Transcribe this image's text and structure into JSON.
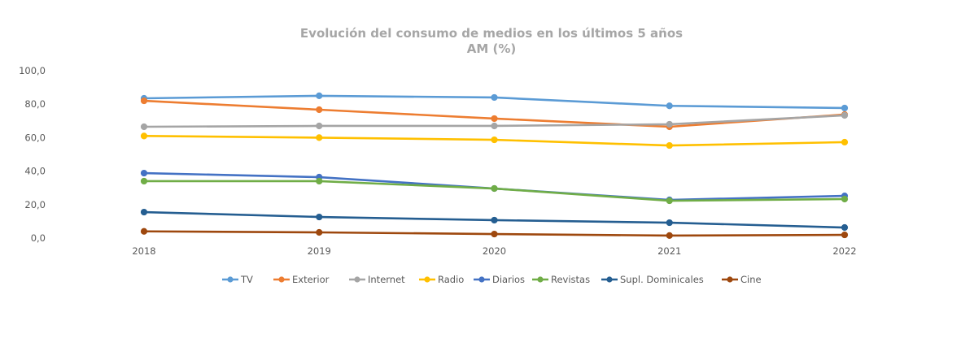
{
  "chart_data": {
    "type": "line",
    "title": "Evolución del consumo de medios en los últimos 5 años",
    "subtitle": "AM (%)",
    "xlabel": "",
    "ylabel": "",
    "x": [
      "2018",
      "2019",
      "2020",
      "2021",
      "2022"
    ],
    "ylim": [
      0,
      100
    ],
    "yticks": [
      "0,0",
      "20,0",
      "40,0",
      "60,0",
      "80,0",
      "100,0"
    ],
    "ytick_values": [
      0,
      20,
      40,
      60,
      80,
      100
    ],
    "grid": false,
    "legend_position": "bottom",
    "series": [
      {
        "name": "TV",
        "color": "#5b9bd5",
        "values": [
          83.5,
          85.0,
          84.0,
          79.0,
          77.7
        ]
      },
      {
        "name": "Exterior",
        "color": "#ed7d31",
        "values": [
          82.0,
          76.7,
          71.4,
          66.5,
          73.8
        ]
      },
      {
        "name": "Internet",
        "color": "#a5a5a5",
        "values": [
          66.5,
          67.0,
          67.0,
          68.0,
          73.3
        ]
      },
      {
        "name": "Radio",
        "color": "#ffc000",
        "values": [
          61.0,
          60.0,
          58.7,
          55.3,
          57.3
        ]
      },
      {
        "name": "Diarios",
        "color": "#4472c4",
        "values": [
          38.8,
          36.4,
          29.6,
          22.8,
          25.2
        ]
      },
      {
        "name": "Revistas",
        "color": "#70ad47",
        "values": [
          34.0,
          34.0,
          29.6,
          22.3,
          23.3
        ]
      },
      {
        "name": "Supl. Dominicales",
        "color": "#255e91",
        "values": [
          15.5,
          12.6,
          10.7,
          9.2,
          6.3
        ]
      },
      {
        "name": "Cine",
        "color": "#9e480e",
        "values": [
          4.0,
          3.4,
          2.4,
          1.5,
          1.9
        ]
      }
    ]
  }
}
